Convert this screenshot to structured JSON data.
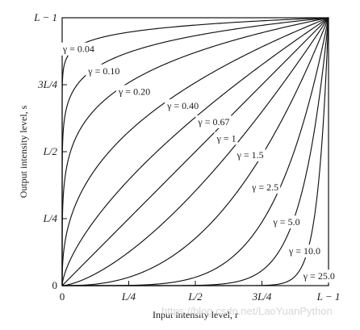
{
  "chart_data": {
    "type": "line",
    "title": "",
    "xlabel": "Input intensity level, r",
    "ylabel": "Output intensity level, s",
    "xlim": [
      0,
      1
    ],
    "ylim": [
      0,
      1
    ],
    "x_ticks": [
      {
        "value": 0,
        "label": "0"
      },
      {
        "value": 0.25,
        "label": "L/4"
      },
      {
        "value": 0.5,
        "label": "L/2"
      },
      {
        "value": 0.75,
        "label": "3L/4"
      },
      {
        "value": 1,
        "label": "L − 1"
      }
    ],
    "y_ticks": [
      {
        "value": 0,
        "label": "0"
      },
      {
        "value": 0.25,
        "label": "L/4"
      },
      {
        "value": 0.5,
        "label": "L/2"
      },
      {
        "value": 0.75,
        "label": "3L/4"
      },
      {
        "value": 1,
        "label": "L − 1"
      }
    ],
    "curve_function": "s = r^gamma",
    "series": [
      {
        "name": "γ = 0.04",
        "gamma": 0.04
      },
      {
        "name": "γ = 0.10",
        "gamma": 0.1
      },
      {
        "name": "γ = 0.20",
        "gamma": 0.2
      },
      {
        "name": "γ = 0.40",
        "gamma": 0.4
      },
      {
        "name": "γ = 0.67",
        "gamma": 0.67
      },
      {
        "name": "γ = 1",
        "gamma": 1
      },
      {
        "name": "γ = 1.5",
        "gamma": 1.5
      },
      {
        "name": "γ = 2.5",
        "gamma": 2.5
      },
      {
        "name": "γ = 5.0",
        "gamma": 5.0
      },
      {
        "name": "γ = 10.0",
        "gamma": 10.0
      },
      {
        "name": "γ = 25.0",
        "gamma": 25.0
      }
    ],
    "grid": false,
    "legend": "inline labels along curves"
  },
  "watermark": "https://blog.csdn.net/LaoYuanPython"
}
